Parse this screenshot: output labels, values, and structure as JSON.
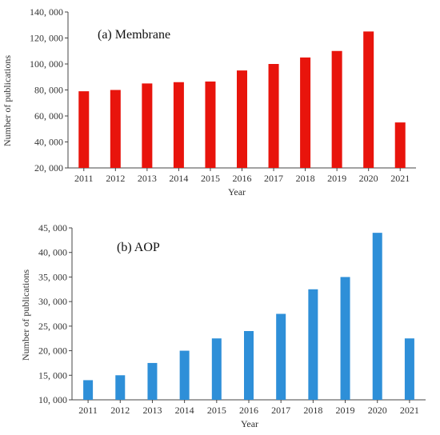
{
  "chart_data": [
    {
      "type": "bar",
      "title": "(a) Membrane",
      "xlabel": "Year",
      "ylabel": "Number of publications",
      "categories": [
        "2011",
        "2012",
        "2013",
        "2014",
        "2015",
        "2016",
        "2017",
        "2018",
        "2019",
        "2020",
        "2021"
      ],
      "values": [
        79000,
        80000,
        85000,
        86000,
        86500,
        95000,
        100000,
        105000,
        110000,
        125000,
        55000
      ],
      "ylim": [
        20000,
        140000
      ],
      "yticks": [
        20000,
        40000,
        60000,
        80000,
        100000,
        120000,
        140000
      ],
      "ytick_labels": [
        "20, 000",
        "40, 000",
        "60, 000",
        "80, 000",
        "100, 000",
        "120, 000",
        "140, 000"
      ],
      "color": "#e8140c",
      "grid": false
    },
    {
      "type": "bar",
      "title": "(b) AOP",
      "xlabel": "Year",
      "ylabel": "Number of publications",
      "categories": [
        "2011",
        "2012",
        "2013",
        "2014",
        "2015",
        "2016",
        "2017",
        "2018",
        "2019",
        "2020",
        "2021"
      ],
      "values": [
        14000,
        15000,
        17500,
        20000,
        22500,
        24000,
        27500,
        32500,
        35000,
        44000,
        22500
      ],
      "ylim": [
        10000,
        45000
      ],
      "yticks": [
        10000,
        15000,
        20000,
        25000,
        30000,
        35000,
        40000,
        45000
      ],
      "ytick_labels": [
        "10, 000",
        "15, 000",
        "20, 000",
        "25, 000",
        "30, 000",
        "35, 000",
        "40, 000",
        "45, 000"
      ],
      "color": "#2e8fd8",
      "grid": false
    }
  ]
}
